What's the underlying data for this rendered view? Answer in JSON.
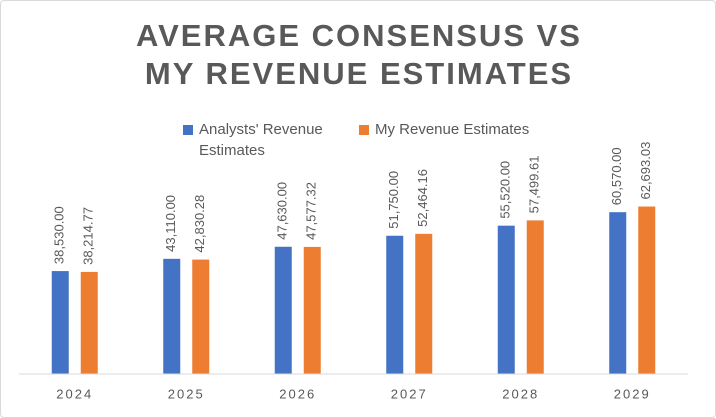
{
  "chart_data": {
    "type": "bar",
    "title": "AVERAGE CONSENSUS VS MY REVENUE ESTIMATES",
    "categories": [
      "2024",
      "2025",
      "2026",
      "2027",
      "2028",
      "2029"
    ],
    "series": [
      {
        "name": "Analysts' Revenue Estimates",
        "color": "#4472c4",
        "values": [
          38530,
          43110,
          47630,
          51750,
          55520,
          60570
        ],
        "value_labels": [
          "38,530.00",
          "43,110.00",
          "47,630.00",
          "51,750.00",
          "55,520.00",
          "60,570.00"
        ]
      },
      {
        "name": "My Revenue Estimates",
        "color": "#ed7d31",
        "values": [
          38214.77,
          42830.28,
          47577.32,
          52464.16,
          57499.61,
          62693.03
        ],
        "value_labels": [
          "38,214.77",
          "42,830.28",
          "47,577.32",
          "52,464.16",
          "57,499.61",
          "62,693.03"
        ]
      }
    ],
    "ylim": [
      0,
      70000
    ],
    "legend": "top"
  }
}
